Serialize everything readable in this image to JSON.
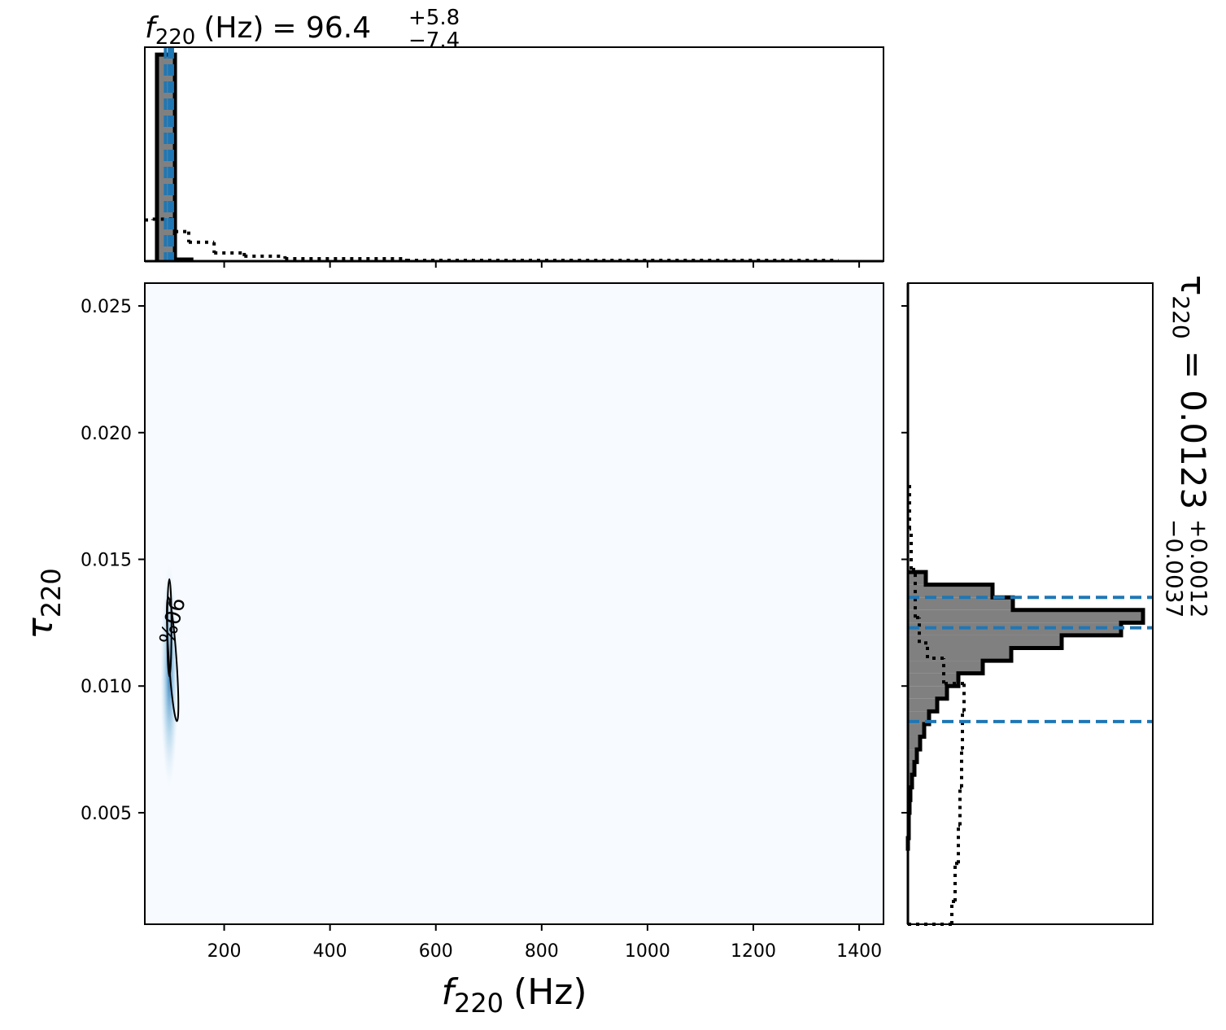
{
  "chart_data": {
    "type": "corner",
    "x_param": {
      "symbol": "f",
      "subscript": "220",
      "unit": "(Hz)",
      "title_value": "= 96.4",
      "title_plus": "+5.8",
      "title_minus": "−7.4",
      "quantiles": [
        89.0,
        96.4,
        102.2
      ]
    },
    "y_param": {
      "symbol": "τ",
      "subscript": "220",
      "title_value": "= 0.0123",
      "title_plus": "+0.0012",
      "title_minus": "−0.0037",
      "quantiles": [
        0.0086,
        0.0123,
        0.0135
      ]
    },
    "contour_label": "90%",
    "xlim": [
      50,
      1446
    ],
    "xticks": [
      200,
      400,
      600,
      800,
      1000,
      1200,
      1400
    ],
    "ylim": [
      0.0006,
      0.0259
    ],
    "yticks": [
      0.005,
      {
        "value": 0.01,
        "label": "0.010"
      },
      0.015,
      {
        "value": 0.02,
        "label": "0.020"
      },
      0.025
    ],
    "x_hist": {
      "bins": [
        73,
        107,
        138
      ],
      "counts": [
        251,
        2
      ]
    },
    "x_prior": {
      "bins": [
        50,
        65,
        107,
        133,
        181,
        238,
        315,
        545,
        853,
        1361
      ],
      "counts": [
        50,
        51,
        36,
        23,
        10,
        6,
        3,
        1,
        1
      ]
    },
    "x_count_lim": [
      0,
      260
    ],
    "y_hist": {
      "bins": [
        0.0035,
        0.004,
        0.0045,
        0.005,
        0.0055,
        0.006,
        0.0065,
        0.007,
        0.0075,
        0.008,
        0.0085,
        0.009,
        0.0095,
        0.01,
        0.0105,
        0.011,
        0.0115,
        0.012,
        0.0125,
        0.013,
        0.0135,
        0.014,
        0.0145
      ],
      "counts": [
        0,
        1,
        1,
        2,
        3,
        5,
        8,
        11,
        15,
        20,
        26,
        36,
        48,
        62,
        92,
        127,
        189,
        262,
        289,
        129,
        104,
        22
      ]
    },
    "y_prior": {
      "bins": [
        0.0006,
        0.0015,
        0.003,
        0.0045,
        0.006,
        0.0075,
        0.009,
        0.0101,
        0.0111,
        0.0117,
        0.0127,
        0.0146,
        0.0162,
        0.0181
      ],
      "counts": [
        54,
        58,
        62,
        64,
        66,
        67,
        69,
        44,
        24,
        14,
        9,
        4,
        2
      ]
    },
    "y_count_lim": [
      0,
      301
    ],
    "posterior_color": "#808080",
    "quantile_color": "#1f77b4",
    "density_color": "#2171b5"
  }
}
